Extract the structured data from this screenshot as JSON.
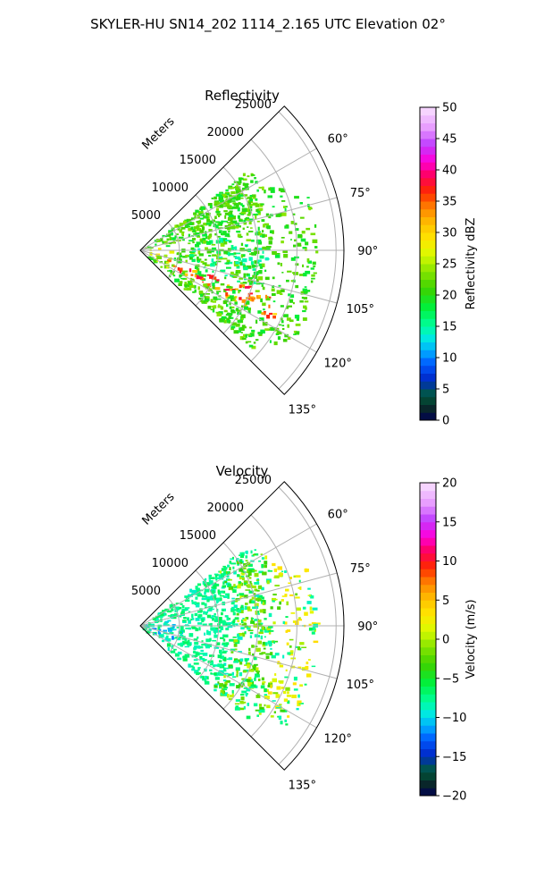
{
  "figure_title": "SKYLER-HU  SN14_202  1114_2.165 UTC Elevation 02°",
  "chart_data": [
    {
      "type": "polar_sector_radar",
      "title": "Reflectivity",
      "radial_label": "Meters",
      "range_ticks": [
        5000,
        10000,
        15000,
        20000,
        25000
      ],
      "azimuth_range_deg": [
        45,
        135
      ],
      "azimuth_ticks": [
        60,
        75,
        90,
        105,
        120,
        135
      ],
      "azimuth_tick_labels": [
        "60°",
        "75°",
        "90°",
        "105°",
        "120°",
        "135°"
      ],
      "grid": true,
      "colorbar": {
        "label": "Reflectivity dBZ",
        "min": 0,
        "max": 50,
        "ticks": [
          0,
          5,
          10,
          15,
          20,
          25,
          30,
          35,
          40,
          45,
          50
        ]
      },
      "features": [
        {
          "field_value_range": [
            14,
            17
          ],
          "desc": "low reflectivity core",
          "az_range": [
            80,
            112
          ],
          "r_range": [
            6000,
            16000
          ]
        },
        {
          "field_value_range": [
            18,
            24
          ],
          "desc": "surrounding echo",
          "az_range": [
            55,
            130
          ],
          "r_range": [
            0,
            20000
          ]
        },
        {
          "field_value_range": [
            25,
            29
          ],
          "desc": "near-radar returns",
          "az_range": [
            75,
            125
          ],
          "r_range": [
            0,
            4000
          ]
        },
        {
          "field_value_range": [
            30,
            40
          ],
          "desc": "high reflectivity streak",
          "az_range": [
            108,
            118
          ],
          "r_range": [
            3000,
            19000
          ]
        }
      ]
    },
    {
      "type": "polar_sector_radar",
      "title": "Velocity",
      "radial_label": "Meters",
      "range_ticks": [
        5000,
        10000,
        15000,
        20000,
        25000
      ],
      "azimuth_range_deg": [
        45,
        135
      ],
      "azimuth_ticks": [
        60,
        75,
        90,
        105,
        120,
        135
      ],
      "azimuth_tick_labels": [
        "60°",
        "75°",
        "90°",
        "105°",
        "120°",
        "135°"
      ],
      "grid": true,
      "colorbar": {
        "label": "Velocity (m/s)",
        "min": -20,
        "max": 20,
        "ticks": [
          -20,
          -15,
          -10,
          -5,
          0,
          5,
          10,
          15,
          20
        ]
      },
      "features": [
        {
          "field_value_range": [
            -12,
            -9
          ],
          "desc": "near-radar inbound",
          "az_range": [
            75,
            125
          ],
          "r_range": [
            0,
            5000
          ]
        },
        {
          "field_value_range": [
            -9,
            -6
          ],
          "desc": "main echo",
          "az_range": [
            55,
            130
          ],
          "r_range": [
            3000,
            16000
          ]
        },
        {
          "field_value_range": [
            -4,
            1
          ],
          "desc": "outer echo",
          "az_range": [
            55,
            130
          ],
          "r_range": [
            12000,
            21000
          ]
        },
        {
          "field_value_range": [
            1,
            4
          ],
          "desc": "far outbound",
          "az_range": [
            60,
            122
          ],
          "r_range": [
            18000,
            25000
          ]
        }
      ]
    }
  ]
}
